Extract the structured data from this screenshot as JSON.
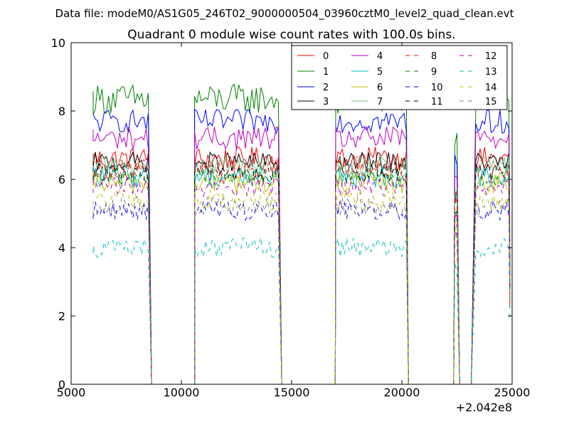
{
  "figure": {
    "suptitle": "Data file: modeM0/AS1G05_246T02_9000000504_03960cztM0_level2_quad_clean.evt"
  },
  "chart_data": {
    "type": "line",
    "title": "Quadrant 0 module wise count rates with 100.0s bins.",
    "xlabel": "",
    "ylabel": "",
    "x_offset_label": "+2.042e8",
    "xlim": [
      5000,
      25000
    ],
    "ylim": [
      0,
      10
    ],
    "xticks": [
      5000,
      10000,
      15000,
      20000,
      25000
    ],
    "yticks": [
      0,
      2,
      4,
      6,
      8,
      10
    ],
    "grid": false,
    "legend_position": "top-right",
    "legend_columns": 4,
    "segments": [
      {
        "start": 6000,
        "end": 8500,
        "fall_end": 8650
      },
      {
        "start": 10600,
        "end": 14450,
        "rise_start": 10600,
        "fall_end": 14550
      },
      {
        "start": 17000,
        "end": 20200,
        "rise_start": 16980,
        "fall_end": 20300
      },
      {
        "start": 22400,
        "end": 22550,
        "rise_start": 22350,
        "fall_end": 22620
      },
      {
        "start": 23350,
        "end": 24900,
        "rise_start": 23150,
        "fall_end": 24900
      }
    ],
    "series": [
      {
        "name": "0",
        "color": "#ff0000",
        "dash": "solid",
        "level": 6.6,
        "noise": 0.35
      },
      {
        "name": "1",
        "color": "#008000",
        "dash": "solid",
        "level": 8.35,
        "noise": 0.45
      },
      {
        "name": "2",
        "color": "#0000ff",
        "dash": "solid",
        "level": 7.7,
        "noise": 0.35
      },
      {
        "name": "3",
        "color": "#000000",
        "dash": "solid",
        "level": 6.5,
        "noise": 0.3
      },
      {
        "name": "4",
        "color": "#bf00bf",
        "dash": "solid",
        "level": 7.2,
        "noise": 0.35
      },
      {
        "name": "5",
        "color": "#00bfbf",
        "dash": "solid",
        "level": 6.1,
        "noise": 0.35
      },
      {
        "name": "6",
        "color": "#bfbf00",
        "dash": "solid",
        "level": 5.9,
        "noise": 0.3
      },
      {
        "name": "7",
        "color": "#7fbf7f",
        "dash": "solid",
        "level": 6.4,
        "noise": 0.3
      },
      {
        "name": "8",
        "color": "#ff0000",
        "dash": "dashed",
        "level": 6.3,
        "noise": 0.3
      },
      {
        "name": "9",
        "color": "#008000",
        "dash": "dashed",
        "level": 6.1,
        "noise": 0.3
      },
      {
        "name": "10",
        "color": "#0000ff",
        "dash": "dashed",
        "level": 5.1,
        "noise": 0.3
      },
      {
        "name": "11",
        "color": "#000000",
        "dash": "dashed",
        "level": 6.2,
        "noise": 0.3
      },
      {
        "name": "12",
        "color": "#bf00bf",
        "dash": "dashed",
        "level": 5.8,
        "noise": 0.3
      },
      {
        "name": "13",
        "color": "#00bfbf",
        "dash": "dashed",
        "level": 4.0,
        "noise": 0.3
      },
      {
        "name": "14",
        "color": "#bfbf00",
        "dash": "dashed",
        "level": 5.4,
        "noise": 0.3
      },
      {
        "name": "15",
        "color": "#7f7f7f",
        "dash": "dashed",
        "level": 5.2,
        "noise": 0.3
      }
    ]
  }
}
